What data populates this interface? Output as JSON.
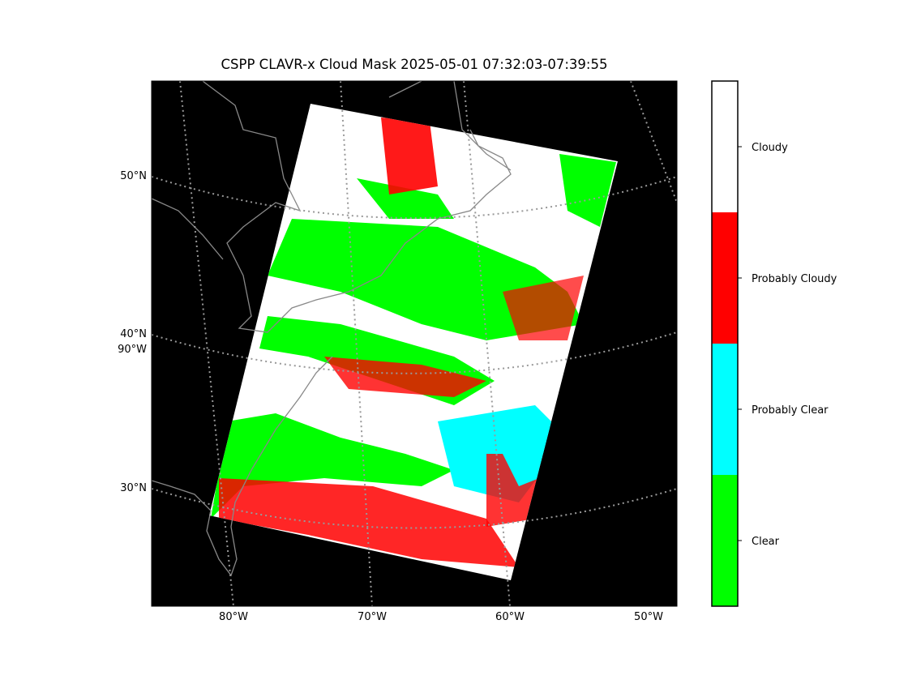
{
  "title": "CSPP CLAVR-x Cloud Mask 2025-05-01 07:32:03-07:39:55",
  "map": {
    "lat_labels": [
      "50°N",
      "40°N",
      "30°N"
    ],
    "lon_labels": [
      "80°W",
      "70°W",
      "60°W",
      "50°W"
    ],
    "side_lon_label": "90°W"
  },
  "colorbar": {
    "categories": [
      {
        "label": "Clear",
        "color": "#00ff00"
      },
      {
        "label": "Probably Clear",
        "color": "#00ffff"
      },
      {
        "label": "Probably Cloudy",
        "color": "#ff0000"
      },
      {
        "label": "Cloudy",
        "color": "#ffffff"
      }
    ]
  }
}
